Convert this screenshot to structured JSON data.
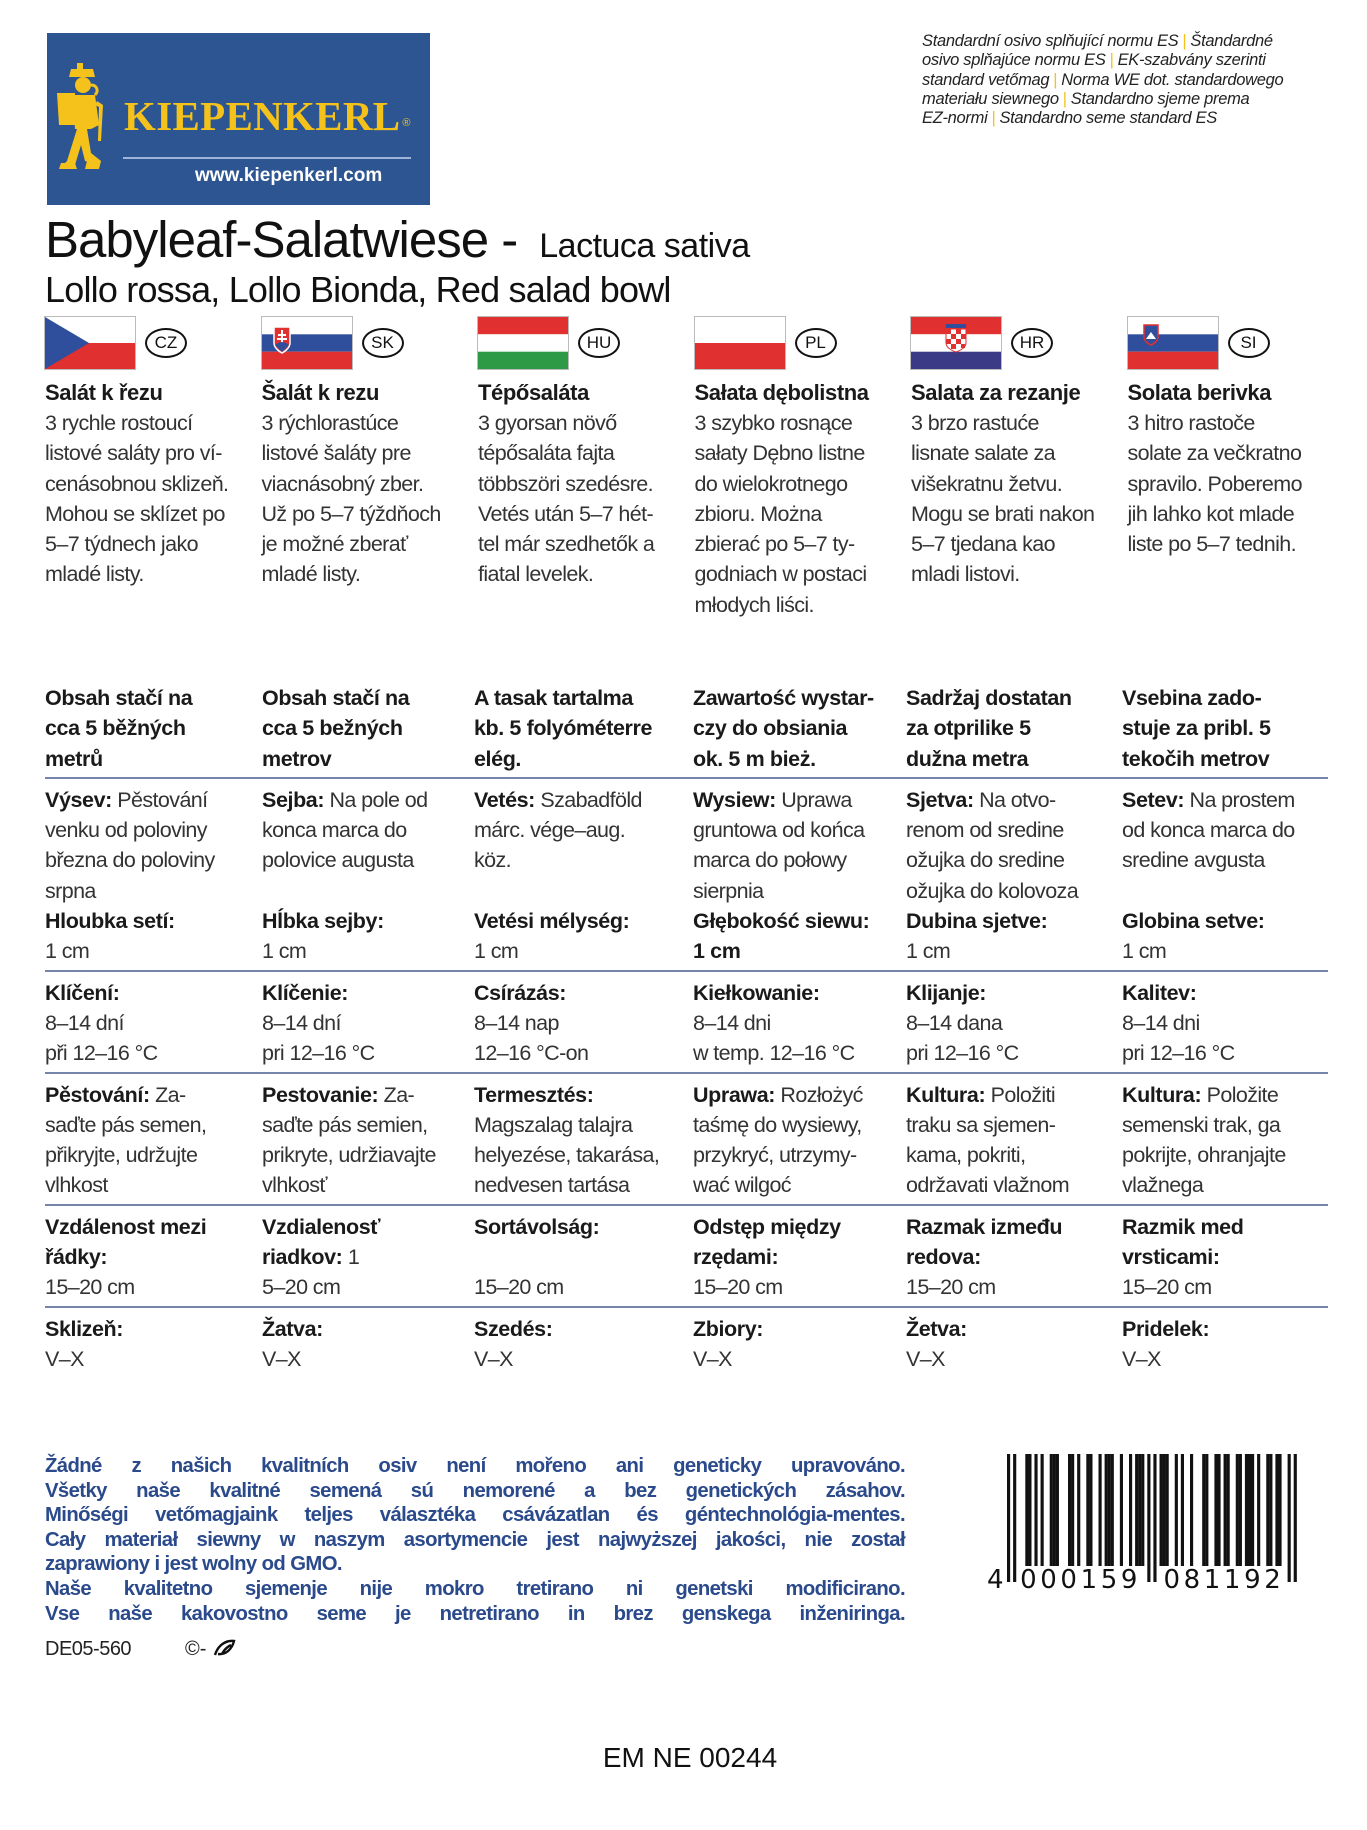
{
  "logo": {
    "brand": "KIEPENKERL",
    "registered": "®",
    "url": "www.kiepenkerl.com",
    "colors": {
      "background": "#2c5592",
      "figure": "#f5c21b"
    }
  },
  "standards_lines": [
    [
      "Standardní osivo splňující normu ES",
      "Štandardné"
    ],
    [
      "osivo splňajúce normu ES",
      "EK-szabvány szerinti"
    ],
    [
      "standard vetőmag",
      "Norma WE dot. standardowego"
    ],
    [
      "materiału siewnego",
      "Standardno sjeme prema"
    ],
    [
      "EZ-normi",
      "Standardno seme standard ES"
    ]
  ],
  "separator_color": "#f5c21b",
  "product": {
    "title": "Babyleaf-Salatwiese -",
    "species": "Lactuca sativa",
    "varieties": "Lollo rossa, Lollo Bionda, Red salad bowl"
  },
  "countries": [
    {
      "code": "CZ",
      "flag": "czech-flag",
      "name": "Salát k řezu",
      "description": "3 rychle rostoucí\nlistové saláty pro ví-\ncenásobnou sklizeň.\nMohou se sklízet po\n5–7 týdnech jako\nmladé listy."
    },
    {
      "code": "SK",
      "flag": "slovak-flag",
      "name": "Šalát k rezu",
      "description": "3 rýchlorastúce\nlistové šaláty pre\nviacnásobný zber.\nUž po 5–7 týždňoch\nje možné zberať\nmladé listy."
    },
    {
      "code": "HU",
      "flag": "hungarian-flag",
      "name": "Tépősaláta",
      "description": "3 gyorsan növő\ntépősaláta fajta\ntöbbszöri szedésre.\nVetés után 5–7 hét-\ntel már szedhetők a\nfiatal levelek."
    },
    {
      "code": "PL",
      "flag": "polish-flag",
      "name": "Sałata dębolistna",
      "description": "3 szybko rosnące\nsałaty Dębno listne\ndo wielokrotnego\nzbioru. Można\nzbierać po 5–7 ty-\ngodniach w postaci\nmłodych liści."
    },
    {
      "code": "HR",
      "flag": "croatian-flag",
      "name": "Salata za rezanje",
      "description": "3 brzo rastuće\nlisnate salate za\nvišekratnu žetvu.\nMogu se brati nakon\n5–7 tjedana kao\nmladi listovi."
    },
    {
      "code": "SI",
      "flag": "slovenian-flag",
      "name": "Solata berivka",
      "description": "3 hitro rastoče\nsolate za večkratno\nspravilo. Poberemo\njih lahko kot mlade\nliste po 5–7 tednih."
    }
  ],
  "table": {
    "content": [
      "Obsah stačí na\ncca 5 běžných\nmetrů",
      "Obsah stačí na\ncca 5 bežných\nmetrov",
      "A tasak tartalma\nkb. 5 folyóméterre\nelég.",
      "Zawartość wystar-\nczy do obsiania\nok. 5 m bież.",
      "Sadržaj dostatan\nza otprilike 5\ndužna metra",
      "Vsebina zado-\nstuje za pribl. 5\ntekočih metrov"
    ],
    "sowing": [
      {
        "label": "Výsev:",
        "text": " Pěstování\nvenku od poloviny\nbřezna do poloviny\nsrpna"
      },
      {
        "label": "Sejba:",
        "text": " Na pole od\nkonca marca do\npolovice augusta"
      },
      {
        "label": "Vetés:",
        "text": " Szabadföld\nmárc. vége–aug.\nköz."
      },
      {
        "label": "Wysiew:",
        "text": " Uprawa\ngruntowa od końca\nmarca do połowy\nsierpnia"
      },
      {
        "label": "Sjetva:",
        "text": " Na otvo-\nrenom od sredine\nožujka do sredine\nožujka do kolovoza"
      },
      {
        "label": "Setev:",
        "text": " Na prostem\nod konca marca do\nsredine avgusta"
      }
    ],
    "depth": [
      {
        "label": "Hloubka setí:",
        "text": "\n1 cm"
      },
      {
        "label": "Hĺbka sejby:",
        "text": "\n1 cm"
      },
      {
        "label": "Vetési mélység:",
        "text": "\n1 cm"
      },
      {
        "label": "Głębokość siewu:\n1 cm",
        "text": ""
      },
      {
        "label": "Dubina sjetve:",
        "text": "\n1 cm"
      },
      {
        "label": "Globina setve:",
        "text": "\n1 cm"
      }
    ],
    "germination": [
      {
        "label": "Klíčení:",
        "text": "\n8–14 dní\npři 12–16 °C"
      },
      {
        "label": "Klíčenie:",
        "text": "\n8–14 dní\npri 12–16 °C"
      },
      {
        "label": "Csírázás:",
        "text": "\n8–14 nap\n12–16 °C-on"
      },
      {
        "label": "Kiełkowanie:",
        "text": "\n8–14 dni\nw temp. 12–16 °C"
      },
      {
        "label": "Klijanje:",
        "text": "\n8–14 dana\npri 12–16 °C"
      },
      {
        "label": "Kalitev:",
        "text": "\n8–14 dni\npri 12–16 °C"
      }
    ],
    "cultivation": [
      {
        "label": "Pěstování:",
        "text": " Za-\nsaďte pás semen,\npřikryjte, udržujte\nvlhkost"
      },
      {
        "label": "Pestovanie:",
        "text": " Za-\nsaďte pás semien,\nprikryte, udržiavajte\nvlhkosť"
      },
      {
        "label": "Termesztés:",
        "text": "\nMagszalag talajra\nhelyezése, takarása,\nnedvesen tartása"
      },
      {
        "label": "Uprawa:",
        "text": " Rozłożyć\ntaśmę do wysiewy,\nprzykryć, utrzymy-\nwać wilgoć"
      },
      {
        "label": "Kultura:",
        "text": " Položiti\ntraku sa sjemen-\nkama, pokriti,\nodržavati vlažnom"
      },
      {
        "label": "Kultura:",
        "text": " Položite\nsemenski trak, ga\npokrijte, ohranjajte\nvlažnega"
      }
    ],
    "spacing": [
      {
        "label": "Vzdálenost mezi\nřádky:",
        "text": "\n15–20 cm"
      },
      {
        "label": "Vzdialenosť\nriadkov:",
        "text": " 1\n5–20 cm"
      },
      {
        "label": "Sortávolság:",
        "text": "\n\n15–20 cm"
      },
      {
        "label": "Odstęp między\nrzędami:",
        "text": "\n15–20 cm"
      },
      {
        "label": "Razmak između\nredova:",
        "text": "\n15–20 cm"
      },
      {
        "label": "Razmik med\nvrsticami:",
        "text": "\n15–20 cm"
      }
    ],
    "harvest": [
      {
        "label": "Sklizeň:",
        "text": "\nV–X"
      },
      {
        "label": "Žatva:",
        "text": "\nV–X"
      },
      {
        "label": "Szedés:",
        "text": "\nV–X"
      },
      {
        "label": "Zbiory:",
        "text": "\nV–X"
      },
      {
        "label": "Žetva:",
        "text": "\nV–X"
      },
      {
        "label": "Pridelek:",
        "text": "\nV–X"
      }
    ],
    "divider_color": "#7686ab"
  },
  "gmo_notice": {
    "color": "#2b4a8b",
    "lines": [
      "Žádné z našich kvalitních osiv není mořeno ani geneticky upravováno.",
      "Všetky naše kvalitné semená sú nemorené a bez genetických zásahov.",
      "Minőségi vetőmagjaink teljes választéka csávázatlan és géntechnológia-mentes.",
      "Cały materiał siewny w naszym asortymencie jest najwyższej jakości, nie został",
      "zaprawiony i jest wolny od GMO.",
      "Naše kvalitetno sjemenje nije mokro tretirano ni genetski modificirano.",
      "Vse naše kakovostno seme je netretirano in brez genskega inženiringa."
    ]
  },
  "footer": {
    "code": "DE05-560",
    "copyright": "©-",
    "registration": "EM NE 00244"
  },
  "barcode": {
    "digits": "4000159081192",
    "first": "4",
    "left": "000159",
    "right": "081192"
  }
}
